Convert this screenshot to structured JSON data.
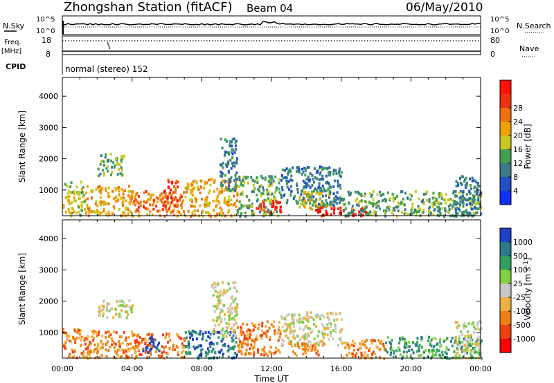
{
  "header": {
    "title": "Zhongshan Station (fitACF)",
    "beam": "Beam 04",
    "date": "06/May/2010"
  },
  "top_panels": {
    "nsky_label": "N.Sky",
    "nsearch_label": "N.Search",
    "freq_label": "Freq.",
    "freq_unit": "[MHz]",
    "nave_label": "Nave",
    "cpid_label": "CPID",
    "cpid_text": "normal (stereo) 152",
    "nsky_ticks": [
      "10^5",
      "10^0"
    ],
    "nsearch_ticks": [
      "10^5",
      "10^0"
    ],
    "freq_ticks": [
      "18",
      "8"
    ],
    "nave_ticks": [
      "80",
      "0"
    ]
  },
  "chart_data": [
    {
      "type": "heatmap",
      "name": "power",
      "ylabel": "Slant Range [km]",
      "xlabel": "Time UT",
      "xticks": [
        "00:00",
        "04:00",
        "08:00",
        "12:00",
        "16:00",
        "20:00",
        "00:00"
      ],
      "yticks": [
        1000,
        2000,
        3000,
        4000
      ],
      "ylim": [
        180,
        4600
      ],
      "xlim_hours": [
        0,
        24
      ],
      "colorbar": {
        "label": "Power [dB]",
        "ticks": [
          "4",
          "8",
          "12",
          "16",
          "20",
          "24",
          "28"
        ],
        "colors": [
          "#1030ff",
          "#2050c8",
          "#3a7a8a",
          "#40a050",
          "#c8c820",
          "#f0a000",
          "#f07010",
          "#f03010",
          "#ff1000"
        ]
      },
      "regions": [
        {
          "t0": 0.0,
          "t1": 1.3,
          "r0": 200,
          "r1": 1300,
          "level": 4
        },
        {
          "t0": 1.3,
          "t1": 4.0,
          "r0": 200,
          "r1": 1200,
          "level": 5
        },
        {
          "t0": 2.0,
          "t1": 3.5,
          "r0": 1500,
          "r1": 2200,
          "level": 3
        },
        {
          "t0": 4.0,
          "t1": 7.0,
          "r0": 200,
          "r1": 1000,
          "level": 6
        },
        {
          "t0": 5.8,
          "t1": 6.6,
          "r0": 400,
          "r1": 1400,
          "level": 7
        },
        {
          "t0": 7.0,
          "t1": 10.0,
          "r0": 200,
          "r1": 1400,
          "level": 5
        },
        {
          "t0": 9.0,
          "t1": 10.0,
          "r0": 1000,
          "r1": 2700,
          "level": 2
        },
        {
          "t0": 10.0,
          "t1": 12.5,
          "r0": 200,
          "r1": 1500,
          "level": 3
        },
        {
          "t0": 11.0,
          "t1": 12.5,
          "r0": 300,
          "r1": 700,
          "level": 7
        },
        {
          "t0": 12.5,
          "t1": 16.0,
          "r0": 500,
          "r1": 1800,
          "level": 2
        },
        {
          "t0": 13.5,
          "t1": 15.5,
          "r0": 400,
          "r1": 1000,
          "level": 4
        },
        {
          "t0": 14.5,
          "t1": 17.5,
          "r0": 200,
          "r1": 500,
          "level": 8
        },
        {
          "t0": 16.0,
          "t1": 24.0,
          "r0": 200,
          "r1": 1000,
          "level": 3
        },
        {
          "t0": 22.5,
          "t1": 24.0,
          "r0": 200,
          "r1": 1500,
          "level": 2
        }
      ]
    },
    {
      "type": "heatmap",
      "name": "velocity",
      "ylabel": "Slant Range [km]",
      "xlabel": "Time UT",
      "xticks": [
        "00:00",
        "04:00",
        "08:00",
        "12:00",
        "16:00",
        "20:00",
        "00:00"
      ],
      "yticks": [
        1000,
        2000,
        3000,
        4000
      ],
      "ylim": [
        180,
        4600
      ],
      "xlim_hours": [
        0,
        24
      ],
      "colorbar": {
        "label": "Velocity [m s",
        "label_sup": "-1",
        "label_close": "]",
        "ticks": [
          "-1000",
          "-500",
          "-100",
          "-25",
          "25",
          "100",
          "500",
          "1000"
        ],
        "colors": [
          "#ff0000",
          "#f04010",
          "#f08010",
          "#f0b040",
          "#c8c8c8",
          "#80d040",
          "#30a060",
          "#2a7a8a",
          "#2040c8"
        ]
      },
      "regions": [
        {
          "t0": 0.0,
          "t1": 1.5,
          "r0": 200,
          "r1": 1200,
          "level": 2
        },
        {
          "t0": 1.5,
          "t1": 4.0,
          "r0": 200,
          "r1": 1100,
          "level": 2
        },
        {
          "t0": 2.0,
          "t1": 4.0,
          "r0": 1500,
          "r1": 2100,
          "level": 4
        },
        {
          "t0": 4.0,
          "t1": 7.0,
          "r0": 200,
          "r1": 1000,
          "level": 2
        },
        {
          "t0": 4.5,
          "t1": 5.5,
          "r0": 400,
          "r1": 900,
          "level": 8
        },
        {
          "t0": 7.0,
          "t1": 10.0,
          "r0": 200,
          "r1": 1100,
          "level": 7
        },
        {
          "t0": 8.5,
          "t1": 10.0,
          "r0": 900,
          "r1": 2700,
          "level": 4
        },
        {
          "t0": 10.0,
          "t1": 12.5,
          "r0": 300,
          "r1": 1400,
          "level": 2
        },
        {
          "t0": 12.5,
          "t1": 16.0,
          "r0": 600,
          "r1": 1700,
          "level": 4
        },
        {
          "t0": 13.0,
          "t1": 15.0,
          "r0": 300,
          "r1": 700,
          "level": 2
        },
        {
          "t0": 16.0,
          "t1": 18.5,
          "r0": 200,
          "r1": 800,
          "level": 2
        },
        {
          "t0": 18.5,
          "t1": 24.0,
          "r0": 200,
          "r1": 900,
          "level": 6
        },
        {
          "t0": 22.5,
          "t1": 24.0,
          "r0": 200,
          "r1": 1400,
          "level": 4
        }
      ]
    }
  ]
}
